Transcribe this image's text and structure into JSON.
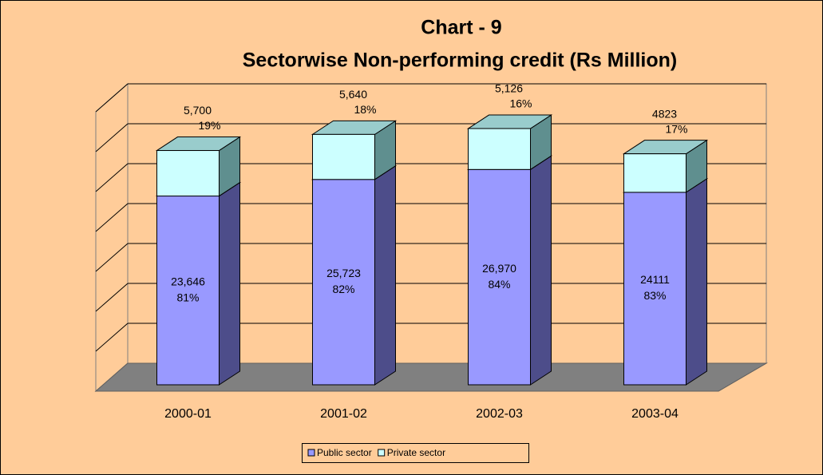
{
  "chart_data": {
    "type": "bar3d_stacked",
    "title": "Chart - 9",
    "subtitle": "Sectorwise Non-performing credit (Rs Million)",
    "categories": [
      "2000-01",
      "2001-02",
      "2002-03",
      "2003-04"
    ],
    "series": [
      {
        "name": "Public sector",
        "color": "#9999FF",
        "values": [
          23646,
          25723,
          26970,
          24111
        ],
        "value_labels": [
          "23,646",
          "25,723",
          "26,970",
          "24111"
        ],
        "share_labels": [
          "81%",
          "82%",
          "84%",
          "83%"
        ]
      },
      {
        "name": "Private sector",
        "color": "#CCFFFF",
        "values": [
          5700,
          5640,
          5126,
          4823
        ],
        "value_labels": [
          "5,700",
          "5,640",
          "5,126",
          "4823"
        ],
        "share_labels": [
          "19%",
          "18%",
          "16%",
          "17%"
        ]
      }
    ],
    "ylim": [
      0,
      35000
    ],
    "yticks": [
      0,
      5000,
      10000,
      15000,
      20000,
      25000,
      30000,
      35000
    ],
    "grid": true,
    "legend": "bottom"
  }
}
